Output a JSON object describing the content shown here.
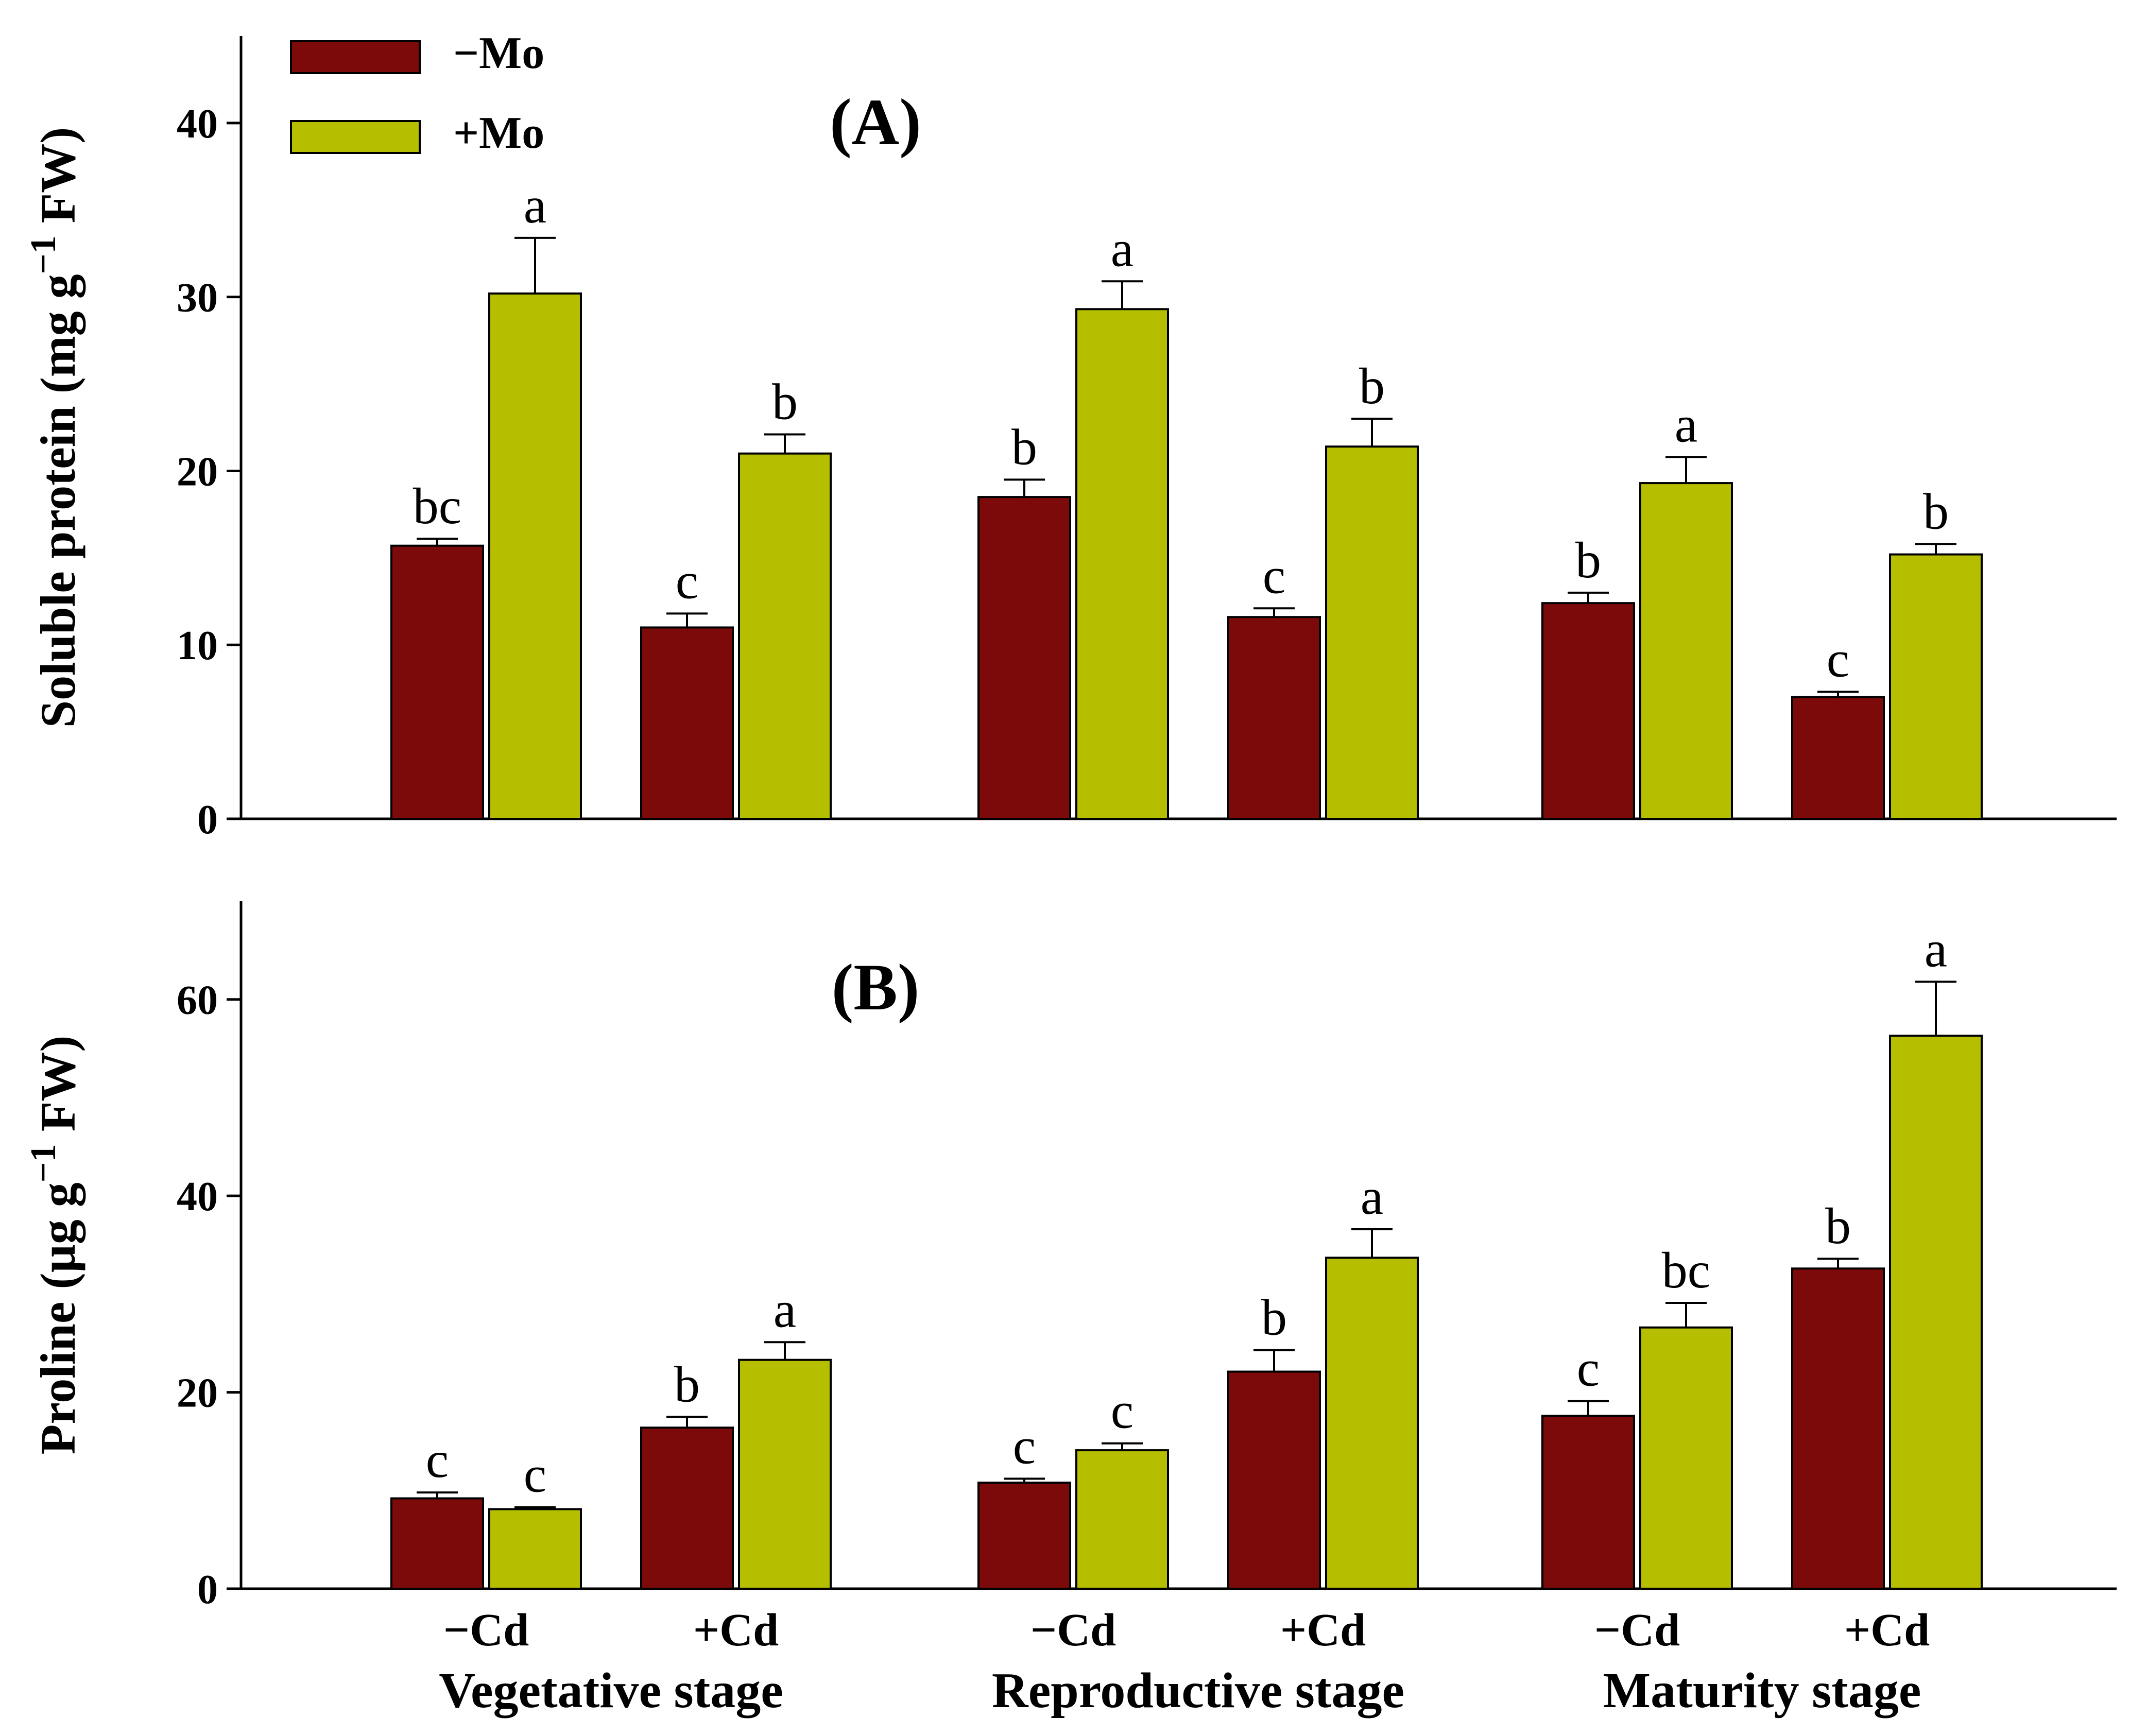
{
  "legend": [
    {
      "key": "minus_mo",
      "label": "−Mo",
      "color": "#7d0a0a"
    },
    {
      "key": "plus_mo",
      "label": "+Mo",
      "color": "#b5bf00"
    }
  ],
  "x_categories": [
    "−Cd",
    "+Cd",
    "−Cd",
    "+Cd",
    "−Cd",
    "+Cd"
  ],
  "x_groups": [
    "Vegetative stage",
    "Reproductive stage",
    "Maturity stage"
  ],
  "chart_data": [
    {
      "type": "bar",
      "panel": "(A)",
      "ylabel": "Soluble protein (mg g",
      "ylabel_sup": "−1",
      "ylabel_tail": " FW)",
      "ylim": [
        0,
        45
      ],
      "yticks": [
        0,
        10,
        20,
        30,
        40
      ],
      "categories": [
        "Vegetative −Cd",
        "Vegetative +Cd",
        "Reproductive −Cd",
        "Reproductive +Cd",
        "Maturity −Cd",
        "Maturity +Cd"
      ],
      "series": [
        {
          "name": "−Mo",
          "values": [
            15.7,
            11.0,
            18.5,
            11.6,
            12.4,
            7.0
          ],
          "errors": [
            0.4,
            0.8,
            1.0,
            0.5,
            0.6,
            0.3
          ],
          "letters": [
            "bc",
            "c",
            "b",
            "c",
            "b",
            "c"
          ]
        },
        {
          "name": "+Mo",
          "values": [
            30.2,
            21.0,
            29.3,
            21.4,
            19.3,
            15.2
          ],
          "errors": [
            3.2,
            1.1,
            1.6,
            1.6,
            1.5,
            0.6
          ],
          "letters": [
            "a",
            "b",
            "a",
            "b",
            "a",
            "b"
          ]
        }
      ]
    },
    {
      "type": "bar",
      "panel": "(B)",
      "ylabel": "Proline (µg g",
      "ylabel_sup": "−1",
      "ylabel_tail": " FW)",
      "ylim": [
        0,
        70
      ],
      "yticks": [
        0,
        20,
        40,
        60
      ],
      "categories": [
        "Vegetative −Cd",
        "Vegetative +Cd",
        "Reproductive −Cd",
        "Reproductive +Cd",
        "Maturity −Cd",
        "Maturity +Cd"
      ],
      "series": [
        {
          "name": "−Mo",
          "values": [
            9.2,
            16.4,
            10.8,
            22.1,
            17.6,
            32.6
          ],
          "errors": [
            0.6,
            1.1,
            0.4,
            2.2,
            1.5,
            1.0
          ],
          "letters": [
            "c",
            "b",
            "c",
            "b",
            "c",
            "b"
          ]
        },
        {
          "name": "+Mo",
          "values": [
            8.1,
            23.3,
            14.1,
            33.7,
            26.6,
            56.3
          ],
          "errors": [
            0.2,
            1.8,
            0.7,
            2.9,
            2.5,
            5.5
          ],
          "letters": [
            "c",
            "a",
            "c",
            "a",
            "bc",
            "a"
          ]
        }
      ]
    }
  ]
}
